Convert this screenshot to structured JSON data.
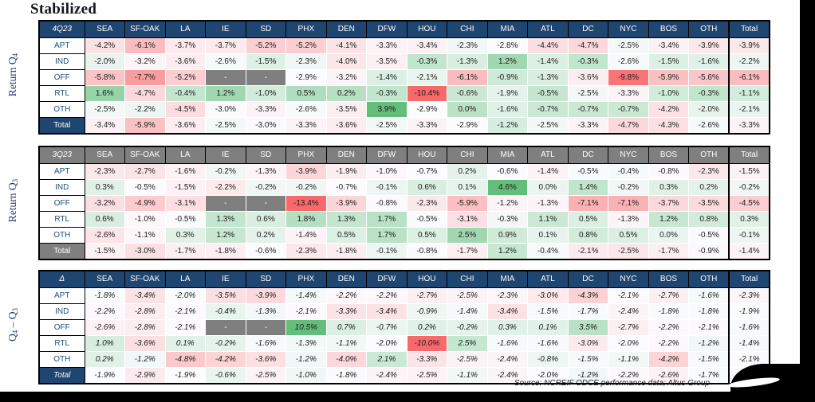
{
  "title": "Stabilized",
  "source": "Source: NCREIF ODCE performance data; Altus Group",
  "colors": {
    "navy": "#1F4571",
    "gray": "#7F7F7F",
    "scale_min": "#F8696B",
    "scale_mid": "#FCFCFF",
    "scale_max": "#63BE7B",
    "label_text": "#1F4E79",
    "side_label_text": "#1F3864"
  },
  "side_labels": [
    {
      "segments": [
        {
          "text": "Return Q"
        },
        {
          "text": "4",
          "sub": true
        }
      ]
    },
    {
      "segments": [
        {
          "text": "Return Q"
        },
        {
          "text": "3",
          "sub": true
        }
      ]
    },
    {
      "segments": [
        {
          "text": "Q"
        },
        {
          "text": "4",
          "sub": true
        },
        {
          "text": " – Q"
        },
        {
          "text": "3",
          "sub": true
        }
      ]
    }
  ],
  "chart_data": [
    {
      "type": "heatmap",
      "title": "Return Q4",
      "corner_label": "4Q23",
      "header_style": "navy",
      "italic": false,
      "columns": [
        "SEA",
        "SF-OAK",
        "LA",
        "IE",
        "SD",
        "PHX",
        "DEN",
        "DFW",
        "HOU",
        "CHI",
        "MIA",
        "ATL",
        "DC",
        "NYC",
        "BOS",
        "OTH",
        "Total"
      ],
      "rows": [
        {
          "label": "APT",
          "values": [
            "-4.2%",
            "-6.1%",
            "-3.7%",
            "-3.7%",
            "-5.2%",
            "-5.2%",
            "-4.1%",
            "-3.3%",
            "-3.4%",
            "-2.3%",
            "-2.8%",
            "-4.4%",
            "-4.7%",
            "-2.5%",
            "-3.4%",
            "-3.9%",
            "-3.9%"
          ]
        },
        {
          "label": "IND",
          "values": [
            "-2.0%",
            "-3.2%",
            "-3.6%",
            "-2.6%",
            "-1.5%",
            "-2.3%",
            "-4.0%",
            "-3.5%",
            "-0.3%",
            "-1.3%",
            "1.2%",
            "-1.4%",
            "-0.3%",
            "-2.6%",
            "-1.5%",
            "-1.6%",
            "-2.2%"
          ]
        },
        {
          "label": "OFF",
          "values": [
            "-5.8%",
            "-7.7%",
            "-5.2%",
            "-",
            "-",
            "-2.9%",
            "-3.2%",
            "-1.4%",
            "-2.1%",
            "-6.1%",
            "-0.9%",
            "-1.3%",
            "-3.6%",
            "-9.8%",
            "-5.9%",
            "-5.6%",
            "-6.1%"
          ]
        },
        {
          "label": "RTL",
          "values": [
            "1.6%",
            "-4.7%",
            "-0.4%",
            "1.2%",
            "-1.0%",
            "0.5%",
            "0.2%",
            "-0.3%",
            "-10.4%",
            "-0.6%",
            "-1.9%",
            "-0.5%",
            "-2.5%",
            "-3.3%",
            "-1.0%",
            "-0.3%",
            "-1.1%"
          ]
        },
        {
          "label": "OTH",
          "values": [
            "-2.5%",
            "-2.2%",
            "-4.5%",
            "-3.0%",
            "-3.3%",
            "-2.6%",
            "-3.5%",
            "3.9%",
            "-2.9%",
            "0.0%",
            "-1.6%",
            "-0.7%",
            "-0.7%",
            "-0.7%",
            "-4.2%",
            "-2.0%",
            "-2.1%"
          ]
        },
        {
          "label": "Total",
          "values": [
            "-3.4%",
            "-5.9%",
            "-3.6%",
            "-2.5%",
            "-3.0%",
            "-3.3%",
            "-3.6%",
            "-2.5%",
            "-3.3%",
            "-2.9%",
            "-1.2%",
            "-2.5%",
            "-3.3%",
            "-4.7%",
            "-4.3%",
            "-2.6%",
            "-3.3%"
          ]
        }
      ]
    },
    {
      "type": "heatmap",
      "title": "Return Q3",
      "corner_label": "3Q23",
      "header_style": "gray",
      "italic": false,
      "columns": [
        "SEA",
        "SF-OAK",
        "LA",
        "IE",
        "SD",
        "PHX",
        "DEN",
        "DFW",
        "HOU",
        "CHI",
        "MIA",
        "ATL",
        "DC",
        "NYC",
        "BOS",
        "OTH",
        "Total"
      ],
      "rows": [
        {
          "label": "APT",
          "values": [
            "-2.3%",
            "-2.7%",
            "-1.6%",
            "-0.2%",
            "-1.3%",
            "-3.9%",
            "-1.9%",
            "-1.0%",
            "-0.7%",
            "0.2%",
            "-0.6%",
            "-1.4%",
            "-0.5%",
            "-0.4%",
            "-0.8%",
            "-2.3%",
            "-1.5%"
          ]
        },
        {
          "label": "IND",
          "values": [
            "0.3%",
            "-0.5%",
            "-1.5%",
            "-2.2%",
            "-0.2%",
            "-0.2%",
            "-0.7%",
            "-0.1%",
            "0.6%",
            "0.1%",
            "4.6%",
            "0.0%",
            "1.4%",
            "-0.2%",
            "0.3%",
            "0.2%",
            "-0.2%"
          ]
        },
        {
          "label": "OFF",
          "values": [
            "-3.2%",
            "-4.9%",
            "-3.1%",
            "-",
            "-",
            "-13.4%",
            "-3.9%",
            "-0.8%",
            "-2.3%",
            "-5.9%",
            "-1.2%",
            "-1.3%",
            "-7.1%",
            "-7.1%",
            "-3.7%",
            "-3.5%",
            "-4.5%"
          ]
        },
        {
          "label": "RTL",
          "values": [
            "0.6%",
            "-1.0%",
            "-0.5%",
            "1.3%",
            "0.6%",
            "1.8%",
            "1.3%",
            "1.7%",
            "-0.5%",
            "-3.1%",
            "-0.3%",
            "1.1%",
            "0.5%",
            "-1.3%",
            "1.2%",
            "0.8%",
            "0.3%"
          ]
        },
        {
          "label": "OTH",
          "values": [
            "-2.6%",
            "-1.1%",
            "0.3%",
            "1.2%",
            "0.2%",
            "-1.4%",
            "0.5%",
            "1.7%",
            "0.5%",
            "2.5%",
            "0.9%",
            "0.1%",
            "0.8%",
            "0.5%",
            "0.0%",
            "-0.5%",
            "-0.1%"
          ]
        },
        {
          "label": "Total",
          "values": [
            "-1.5%",
            "-3.0%",
            "-1.7%",
            "-1.8%",
            "-0.6%",
            "-2.3%",
            "-1.8%",
            "-0.1%",
            "-0.8%",
            "-1.7%",
            "1.2%",
            "-0.4%",
            "-2.1%",
            "-2.5%",
            "-1.7%",
            "-0.9%",
            "-1.4%"
          ]
        }
      ]
    },
    {
      "type": "heatmap",
      "title": "Q4 - Q3",
      "corner_label": "Δ",
      "header_style": "navy",
      "italic": true,
      "columns": [
        "SEA",
        "SF-OAK",
        "LA",
        "IE",
        "SD",
        "PHX",
        "DEN",
        "DFW",
        "HOU",
        "CHI",
        "MIA",
        "ATL",
        "DC",
        "NYC",
        "BOS",
        "OTH",
        "Total"
      ],
      "rows": [
        {
          "label": "APT",
          "values": [
            "-1.8%",
            "-3.4%",
            "-2.0%",
            "-3.5%",
            "-3.9%",
            "-1.4%",
            "-2.2%",
            "-2.2%",
            "-2.7%",
            "-2.5%",
            "-2.3%",
            "-3.0%",
            "-4.3%",
            "-2.1%",
            "-2.7%",
            "-1.6%",
            "-2.3%"
          ]
        },
        {
          "label": "IND",
          "values": [
            "-2.2%",
            "-2.8%",
            "-2.1%",
            "-0.4%",
            "-1.3%",
            "-2.1%",
            "-3.3%",
            "-3.4%",
            "-0.9%",
            "-1.4%",
            "-3.4%",
            "-1.5%",
            "-1.7%",
            "-2.4%",
            "-1.8%",
            "-1.8%",
            "-1.9%"
          ]
        },
        {
          "label": "OFF",
          "values": [
            "-2.6%",
            "-2.8%",
            "-2.1%",
            "-",
            "-",
            "10.5%",
            "0.7%",
            "-0.7%",
            "0.2%",
            "-0.2%",
            "0.3%",
            "0.1%",
            "3.5%",
            "-2.7%",
            "-2.2%",
            "-2.1%",
            "-1.6%"
          ]
        },
        {
          "label": "RTL",
          "values": [
            "1.0%",
            "-3.6%",
            "0.1%",
            "-0.2%",
            "-1.6%",
            "-1.3%",
            "-1.1%",
            "-2.0%",
            "-10.0%",
            "2.5%",
            "-1.6%",
            "-1.6%",
            "-3.0%",
            "-2.0%",
            "-2.2%",
            "-1.2%",
            "-1.4%"
          ]
        },
        {
          "label": "OTH",
          "values": [
            "0.2%",
            "-1.2%",
            "-4.8%",
            "-4.2%",
            "-3.6%",
            "-1.2%",
            "-4.0%",
            "2.1%",
            "-3.3%",
            "-2.5%",
            "-2.4%",
            "-0.8%",
            "-1.5%",
            "-1.1%",
            "-4.2%",
            "-1.5%",
            "-2.1%"
          ]
        },
        {
          "label": "Total",
          "values": [
            "-1.9%",
            "-2.9%",
            "-1.9%",
            "-0.6%",
            "-2.5%",
            "-1.0%",
            "-1.8%",
            "-2.4%",
            "-2.5%",
            "-1.1%",
            "-2.4%",
            "-2.0%",
            "-1.2%",
            "-2.2%",
            "-2.6%",
            "-1.7%",
            "-1.9%"
          ]
        }
      ]
    }
  ]
}
